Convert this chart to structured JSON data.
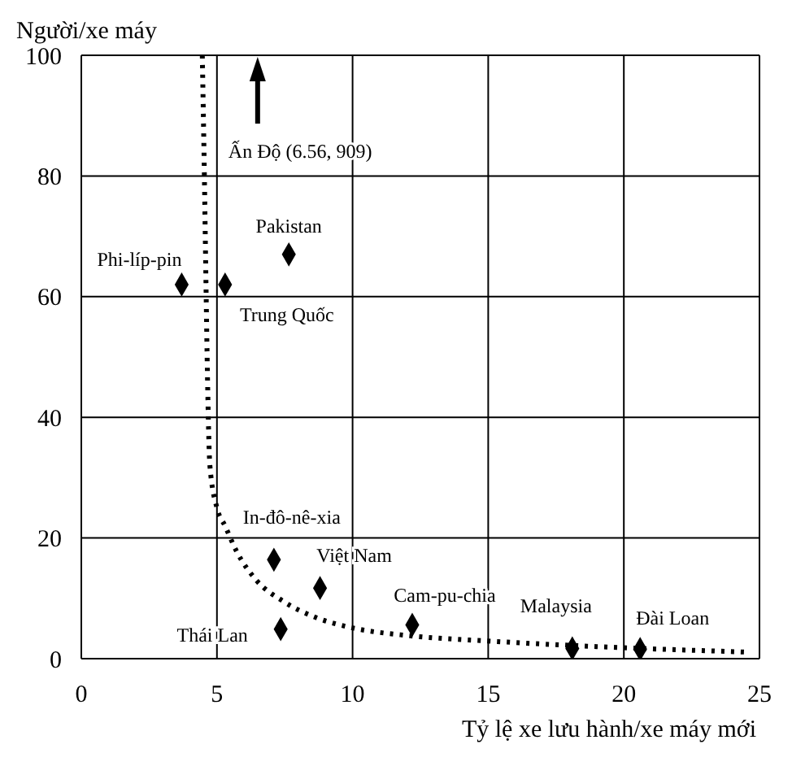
{
  "chart_data": {
    "type": "scatter",
    "xlabel": "Tỷ lệ xe lưu hành/xe máy mới",
    "ylabel": "Người/xe máy",
    "xlim": [
      0,
      25
    ],
    "xticks": [
      0,
      5,
      10,
      15,
      20,
      25
    ],
    "ylim": [
      0,
      100
    ],
    "yticks": [
      0,
      20,
      40,
      60,
      80,
      100
    ],
    "grid": true,
    "marker": "diamond",
    "series": [
      {
        "color": "#000000",
        "x": [
          3.7,
          5.3,
          7.65,
          7.1,
          8.8,
          7.35,
          12.2,
          18.1,
          20.6
        ],
        "values": [
          62,
          62,
          67,
          16.4,
          11.7,
          4.9,
          5.6,
          1.7,
          1.6
        ]
      },
      {
        "type": "line",
        "color": "#000000",
        "line_style": "dotted",
        "marker": "none",
        "x": [
          4.46,
          4.53,
          4.6,
          4.65,
          4.74,
          5.0,
          5.3,
          5.7,
          6.45,
          7.45,
          8.6,
          10,
          12.1,
          15.1,
          19,
          24.5
        ],
        "values": [
          100,
          82,
          61,
          47,
          32,
          25,
          22,
          18,
          13,
          9.5,
          6.9,
          5.1,
          3.8,
          2.9,
          2,
          1.1
        ]
      }
    ],
    "annotations": [
      {
        "text": "Phi-líp-pin",
        "x": 3.7,
        "y": 62
      },
      {
        "text": "Trung Quốc",
        "x": 5.3,
        "y": 62
      },
      {
        "text": "Pakistan",
        "x": 7.65,
        "y": 67
      },
      {
        "text": "In-đô-nê-xia",
        "x": 7.1,
        "y": 16.4
      },
      {
        "text": "Việt Nam",
        "x": 8.8,
        "y": 11.7
      },
      {
        "text": "Thái Lan",
        "x": 7.35,
        "y": 4.9
      },
      {
        "text": "Cam-pu-chia",
        "x": 12.2,
        "y": 5.6
      },
      {
        "text": "Malaysia",
        "x": 18.1,
        "y": 1.7
      },
      {
        "text": "Đài Loan",
        "x": 20.6,
        "y": 1.6
      },
      "Ấn Độ (6.56, 909)"
    ]
  }
}
